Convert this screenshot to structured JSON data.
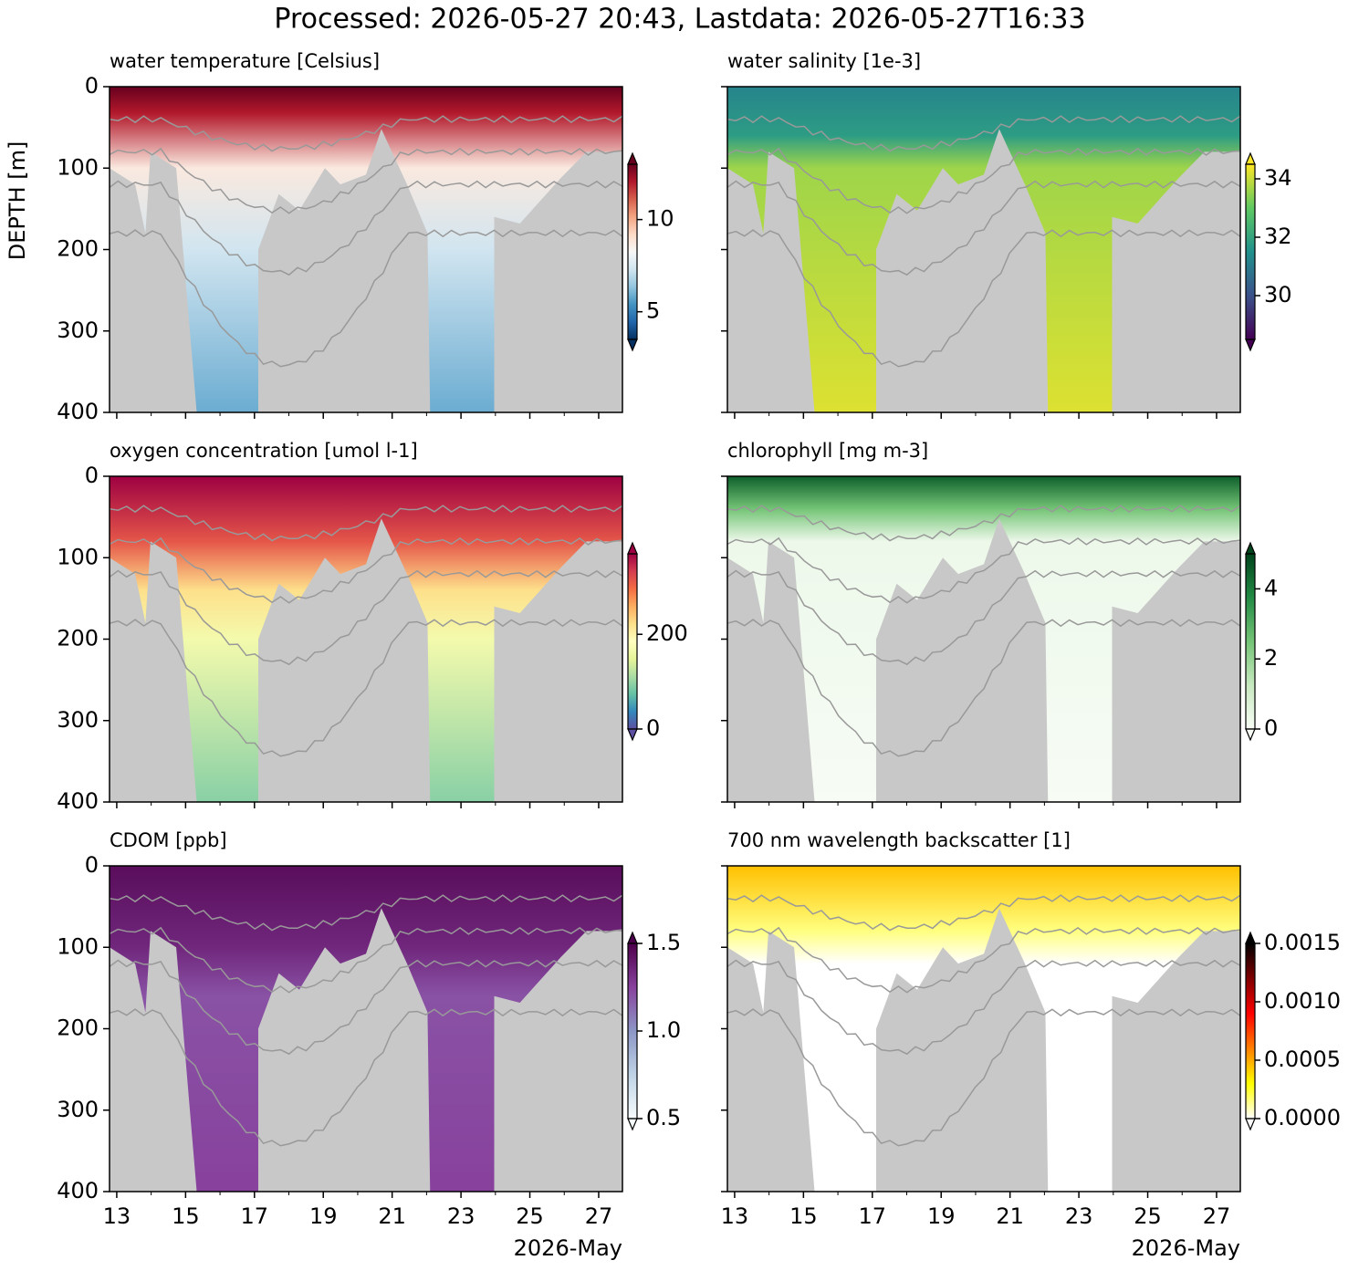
{
  "title": "Processed: 2026-05-27 20:43, Lastdata: 2026-05-27T16:33",
  "chart_data": [
    {
      "type": "heatmap",
      "title": "water temperature [Celsius]",
      "ylabel": "DEPTH [m]",
      "ylim": [
        400,
        0
      ],
      "yticks": [
        0,
        100,
        200,
        300,
        400
      ],
      "show_yticklabels": true,
      "xlim": [
        12.79,
        27.69
      ],
      "xticks": [
        13,
        15,
        17,
        19,
        21,
        23,
        25,
        27
      ],
      "show_xticklabels": false,
      "colorbar": {
        "clim": [
          3.5,
          13
        ],
        "ticks": [
          5,
          10
        ],
        "extend": "both",
        "cmap": [
          "#053061",
          "#2166ac",
          "#4393c3",
          "#92c5de",
          "#d1e5f0",
          "#f7f7f7",
          "#fddbc7",
          "#f4a582",
          "#d6604d",
          "#b2182b",
          "#67001f"
        ]
      }
    },
    {
      "type": "heatmap",
      "title": "water salinity [1e-3]",
      "ylim": [
        400,
        0
      ],
      "yticks": [
        0,
        100,
        200,
        300,
        400
      ],
      "show_yticklabels": false,
      "xlim": [
        12.79,
        27.69
      ],
      "xticks": [
        13,
        15,
        17,
        19,
        21,
        23,
        25,
        27
      ],
      "show_xticklabels": false,
      "colorbar": {
        "clim": [
          28.5,
          34.5
        ],
        "ticks": [
          30,
          32,
          34
        ],
        "extend": "both",
        "cmap": [
          "#440154",
          "#3b528b",
          "#21918c",
          "#5ec962",
          "#fde725"
        ]
      }
    },
    {
      "type": "heatmap",
      "title": "oxygen concentration [umol l-1]",
      "ylim": [
        400,
        0
      ],
      "yticks": [
        0,
        100,
        200,
        300,
        400
      ],
      "show_yticklabels": true,
      "xlim": [
        12.79,
        27.69
      ],
      "xticks": [
        13,
        15,
        17,
        19,
        21,
        23,
        25,
        27
      ],
      "show_xticklabels": false,
      "colorbar": {
        "clim": [
          0,
          370
        ],
        "ticks": [
          0,
          200
        ],
        "extend": "both",
        "cmap": [
          "#5e4fa2",
          "#3288bd",
          "#66c2a5",
          "#abdda4",
          "#e6f598",
          "#ffffbf",
          "#fee08b",
          "#fdae61",
          "#f46d43",
          "#d53e4f",
          "#9e0142"
        ]
      }
    },
    {
      "type": "heatmap",
      "title": "chlorophyll [mg m-3]",
      "ylim": [
        400,
        0
      ],
      "yticks": [
        0,
        100,
        200,
        300,
        400
      ],
      "show_yticklabels": false,
      "xlim": [
        12.79,
        27.69
      ],
      "xticks": [
        13,
        15,
        17,
        19,
        21,
        23,
        25,
        27
      ],
      "show_xticklabels": false,
      "colorbar": {
        "clim": [
          0,
          5
        ],
        "ticks": [
          0,
          2,
          4
        ],
        "extend": "both",
        "cmap": [
          "#f7fcf5",
          "#c7e9c0",
          "#74c476",
          "#238b45",
          "#00441b"
        ]
      }
    },
    {
      "type": "heatmap",
      "title": "CDOM [ppb]",
      "xlabel": "2026-May",
      "ylim": [
        400,
        0
      ],
      "yticks": [
        0,
        100,
        200,
        300,
        400
      ],
      "show_yticklabels": true,
      "xlim": [
        12.79,
        27.69
      ],
      "xticks": [
        13,
        15,
        17,
        19,
        21,
        23,
        25,
        27
      ],
      "show_xticklabels": true,
      "colorbar": {
        "clim": [
          0.5,
          1.5
        ],
        "ticks": [
          0.5,
          1.0,
          1.5
        ],
        "ticklabels": [
          "0.5",
          "1.0",
          "1.5"
        ],
        "extend": "both",
        "cmap": [
          "#f7fcfd",
          "#bfd3e6",
          "#8c96c6",
          "#88419d",
          "#4d004b"
        ]
      }
    },
    {
      "type": "heatmap",
      "title": "700 nm wavelength backscatter [1]",
      "xlabel": "2026-May",
      "ylim": [
        400,
        0
      ],
      "yticks": [
        0,
        100,
        200,
        300,
        400
      ],
      "show_yticklabels": false,
      "xlim": [
        12.79,
        27.69
      ],
      "xticks": [
        13,
        15,
        17,
        19,
        21,
        23,
        25,
        27
      ],
      "show_xticklabels": true,
      "colorbar": {
        "clim": [
          0,
          0.0015
        ],
        "ticks": [
          {
            "value": 0,
            "label": "0.0000"
          },
          {
            "value": 0.0005,
            "label": "0.0005"
          },
          {
            "value": 0.001,
            "label": "0.0010"
          },
          {
            "value": 0.0015,
            "label": "0.0015"
          }
        ],
        "extend": "both",
        "cmap": [
          "#ffffff",
          "#ffff00",
          "#ff8000",
          "#ff0000",
          "#800000",
          "#000000"
        ]
      }
    }
  ]
}
